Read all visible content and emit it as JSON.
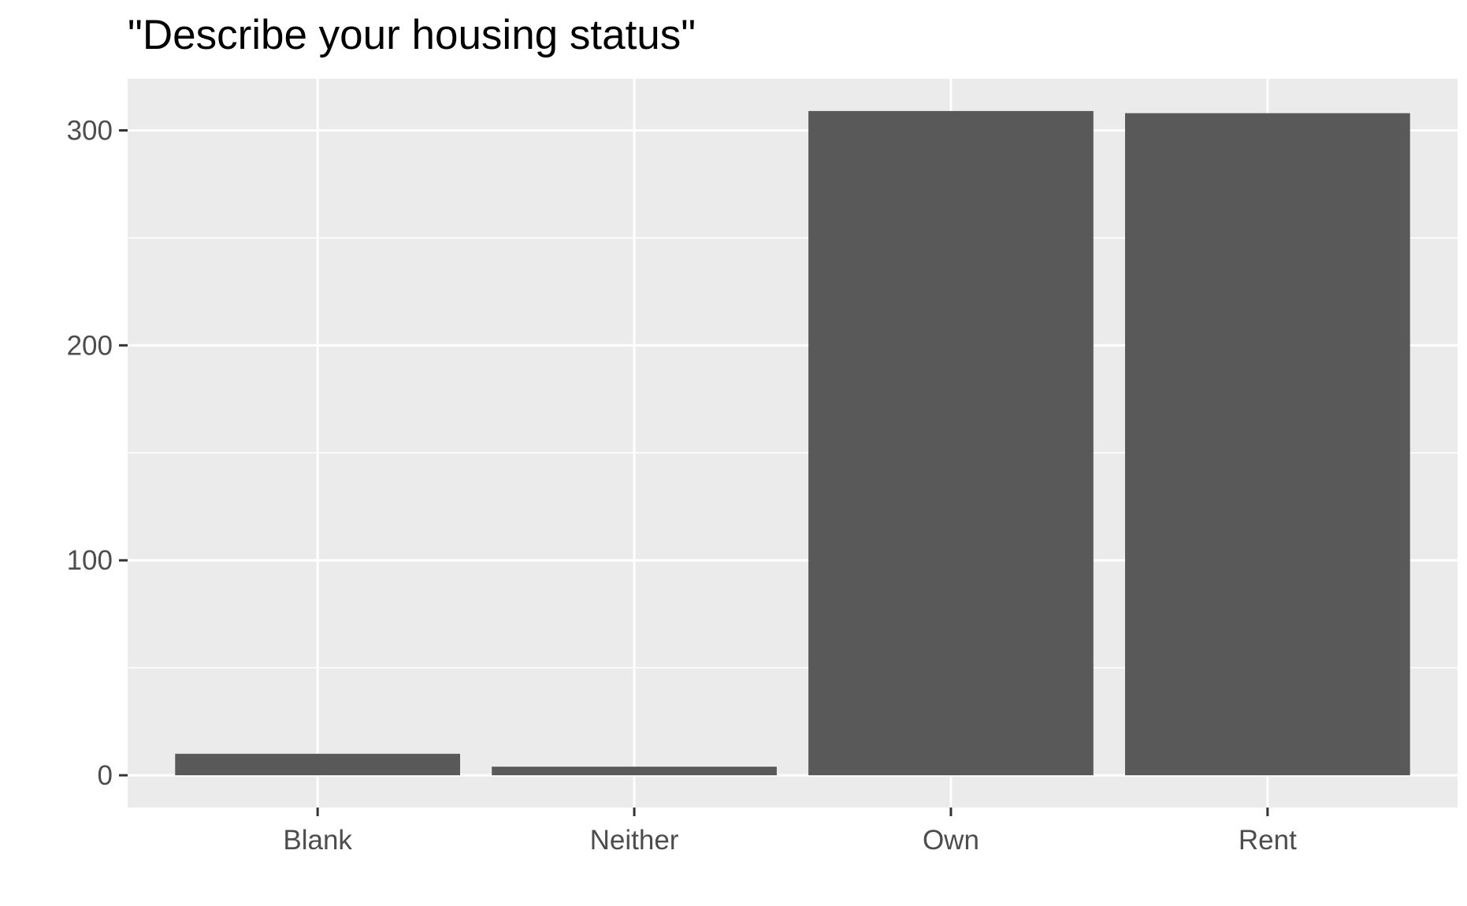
{
  "chart_data": {
    "type": "bar",
    "title": "\"Describe your housing status\"",
    "xlabel": "",
    "ylabel": "",
    "categories": [
      "Blank",
      "Neither",
      "Own",
      "Rent"
    ],
    "values": [
      10,
      4,
      309,
      308
    ],
    "ylim": [
      -15,
      324
    ],
    "yticks": [
      0,
      100,
      200,
      300
    ],
    "y_tick_labels": [
      "0",
      "100",
      "200",
      "300"
    ],
    "grid": true,
    "legend": "none",
    "colors": {
      "panel_background": "#EBEBEB",
      "grid_line": "#FFFFFF",
      "bar_fill": "#595959",
      "tick_text": "#4D4D4D",
      "tick_mark": "#333333",
      "title_text": "#000000"
    }
  }
}
